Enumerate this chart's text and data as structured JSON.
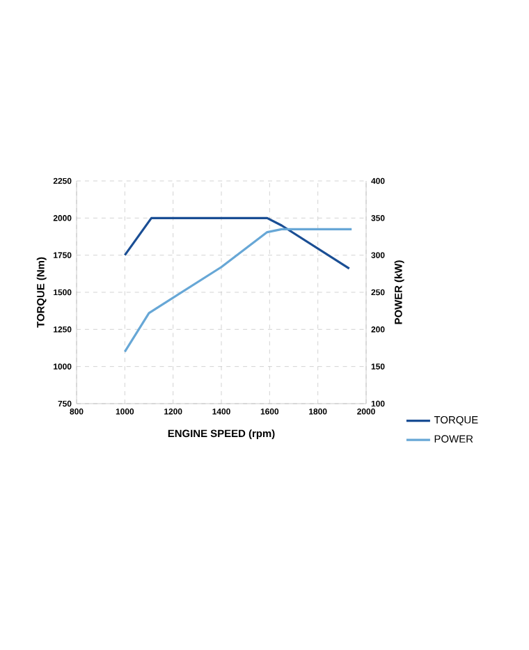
{
  "chart_data": {
    "type": "line",
    "xlabel": "ENGINE SPEED (rpm)",
    "ylabel": "TORQUE (Nm)",
    "y2label": "POWER (kW)",
    "xlim": [
      800,
      2000
    ],
    "xticks": [
      800,
      1000,
      1200,
      1400,
      1600,
      1800,
      2000
    ],
    "ylim": [
      750,
      2250
    ],
    "yticks": [
      750,
      1000,
      1250,
      1500,
      1750,
      2000,
      2250
    ],
    "y2lim": [
      100,
      400
    ],
    "y2ticks": [
      100,
      150,
      200,
      250,
      300,
      350,
      400
    ],
    "grid": true,
    "legend": "bottom right",
    "marker": "none",
    "line_style": "solid",
    "series": [
      {
        "name": "TORQUE",
        "color": "#1a4e94",
        "x": [
          1000,
          1110,
          1590,
          1650,
          1930
        ],
        "values": [
          1750,
          2000,
          2000,
          1950,
          1660
        ]
      },
      {
        "name": "POWER",
        "color": "#67a7d6",
        "axis": "y2",
        "x": [
          1000,
          1100,
          1400,
          1590,
          1650,
          1940
        ],
        "values": [
          170,
          222,
          284,
          331,
          335,
          335
        ]
      }
    ]
  }
}
